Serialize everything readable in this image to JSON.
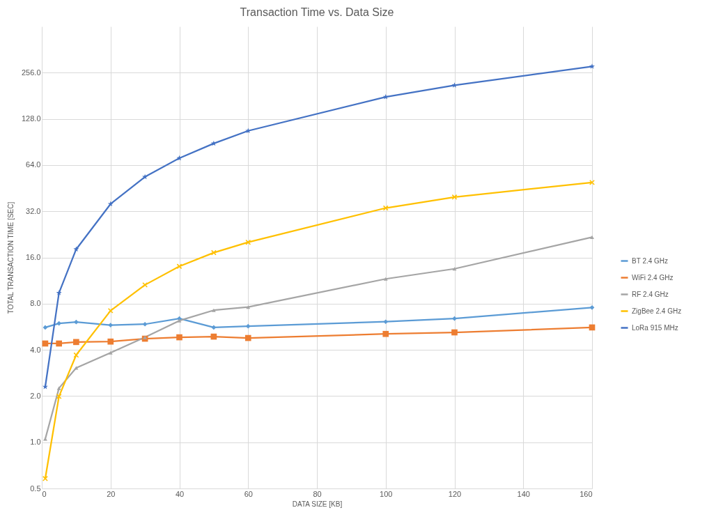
{
  "chart_data": {
    "type": "line",
    "title": "Transaction Time vs. Data Size",
    "xlabel": "DATA SIZE [KB]",
    "ylabel": "TOTAL TRANSACTION TIME [SEC]",
    "x": [
      1,
      5,
      10,
      20,
      30,
      40,
      50,
      60,
      100,
      120,
      160
    ],
    "series": [
      {
        "name": "BT 2.4 GHz",
        "color": "#5b9bd5",
        "marker": "diamond",
        "values": [
          5.6,
          5.95,
          6.07,
          5.8,
          5.88,
          6.4,
          5.6,
          5.7,
          6.1,
          6.4,
          7.55
        ]
      },
      {
        "name": "WiFi 2.4 GHz",
        "color": "#ed7d31",
        "marker": "square",
        "values": [
          4.4,
          4.4,
          4.5,
          4.53,
          4.73,
          4.83,
          4.88,
          4.78,
          5.08,
          5.2,
          5.6
        ]
      },
      {
        "name": "RF 2.4 GHz",
        "color": "#a5a5a5",
        "marker": "triangle",
        "values": [
          1.05,
          2.25,
          3.05,
          3.83,
          4.83,
          6.2,
          7.25,
          7.6,
          11.6,
          13.5,
          21.7
        ]
      },
      {
        "name": "ZigBee 2.4 GHz",
        "color": "#ffc000",
        "marker": "cross",
        "values": [
          0.58,
          1.99,
          3.7,
          7.2,
          10.6,
          14,
          17.2,
          20.1,
          33.6,
          39.6,
          49.3
        ]
      },
      {
        "name": "LoRa 915 MHz",
        "color": "#4472c4",
        "marker": "star",
        "values": [
          2.3,
          9.4,
          18.1,
          35.7,
          53.6,
          71,
          88.5,
          107,
          178,
          212,
          281
        ]
      }
    ],
    "log": true,
    "xlim": [
      0,
      160
    ],
    "xticks": [
      0,
      20,
      40,
      60,
      80,
      100,
      120,
      140,
      160
    ],
    "ylim": [
      0.5,
      512
    ],
    "yticks": [
      {
        "value": 0.5,
        "label": "0.5"
      },
      {
        "value": 1,
        "label": "1.0"
      },
      {
        "value": 2,
        "label": "2.0"
      },
      {
        "value": 4,
        "label": "4.0"
      },
      {
        "value": 8,
        "label": "8.0"
      },
      {
        "value": 16,
        "label": "16.0"
      },
      {
        "value": 32,
        "label": "32.0"
      },
      {
        "value": 64,
        "label": "64.0"
      },
      {
        "value": 128,
        "label": "128.0"
      },
      {
        "value": 256,
        "label": "256.0"
      }
    ],
    "grid": true,
    "legend": "right",
    "line_style": "solid"
  }
}
